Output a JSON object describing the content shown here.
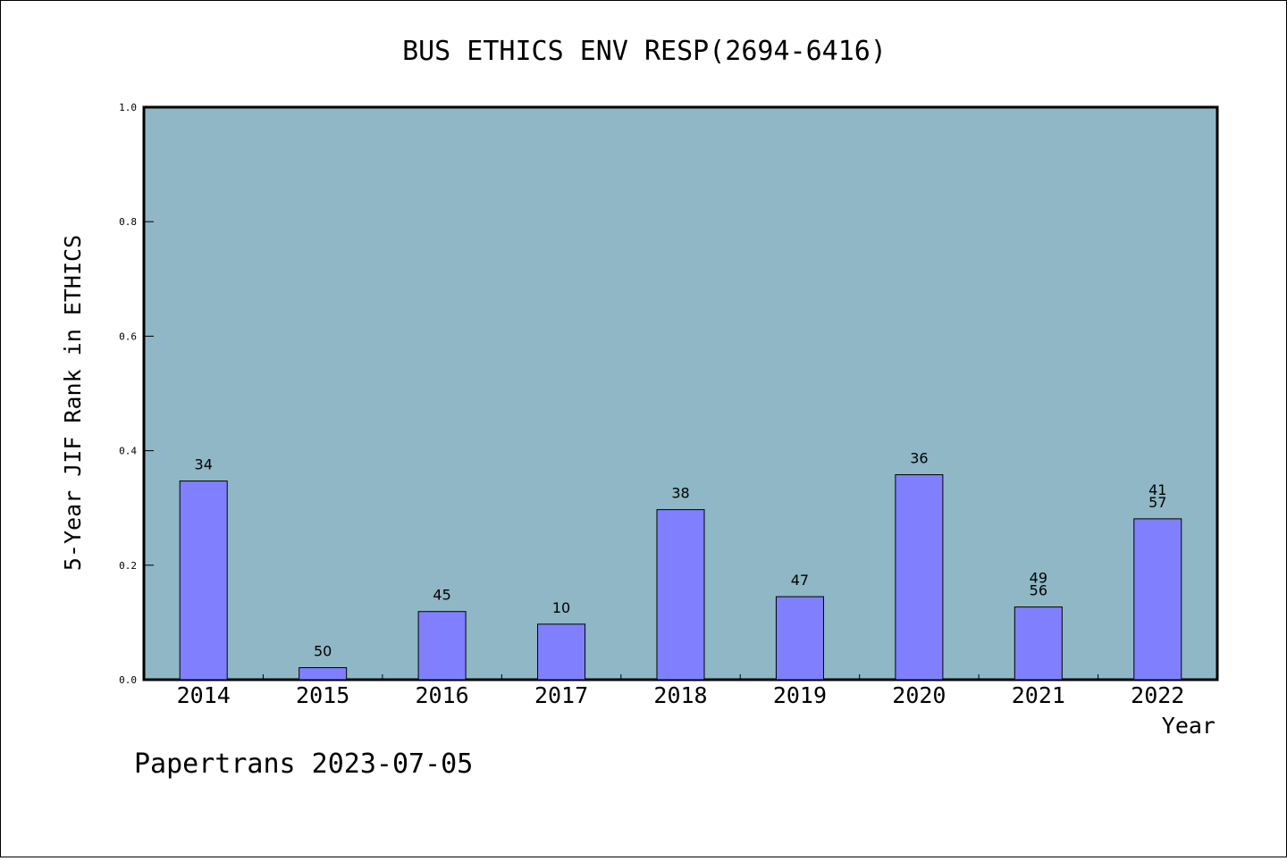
{
  "chart_data": {
    "type": "bar",
    "title": "BUS ETHICS ENV RESP(2694-6416)",
    "xlabel": "Year",
    "ylabel": "5-Year JIF Rank in ETHICS",
    "ylim": [
      0,
      1.0
    ],
    "yticks": [
      "0.0",
      "0.2",
      "0.4",
      "0.6",
      "0.8",
      "1.0"
    ],
    "categories": [
      "2014",
      "2015",
      "2016",
      "2017",
      "2018",
      "2019",
      "2020",
      "2021",
      "2022"
    ],
    "values": [
      0.347,
      0.021,
      0.119,
      0.097,
      0.297,
      0.145,
      0.358,
      0.127,
      0.281
    ],
    "labels": [
      [
        "34"
      ],
      [
        "50"
      ],
      [
        "45"
      ],
      [
        "10"
      ],
      [
        "38"
      ],
      [
        "47"
      ],
      [
        "36"
      ],
      [
        "49",
        "56"
      ],
      [
        "41",
        "57"
      ]
    ],
    "grid": false,
    "plot_background": "#8fb7c5",
    "bar_color": "#8080ff"
  },
  "footer": "Papertrans 2023-07-05"
}
